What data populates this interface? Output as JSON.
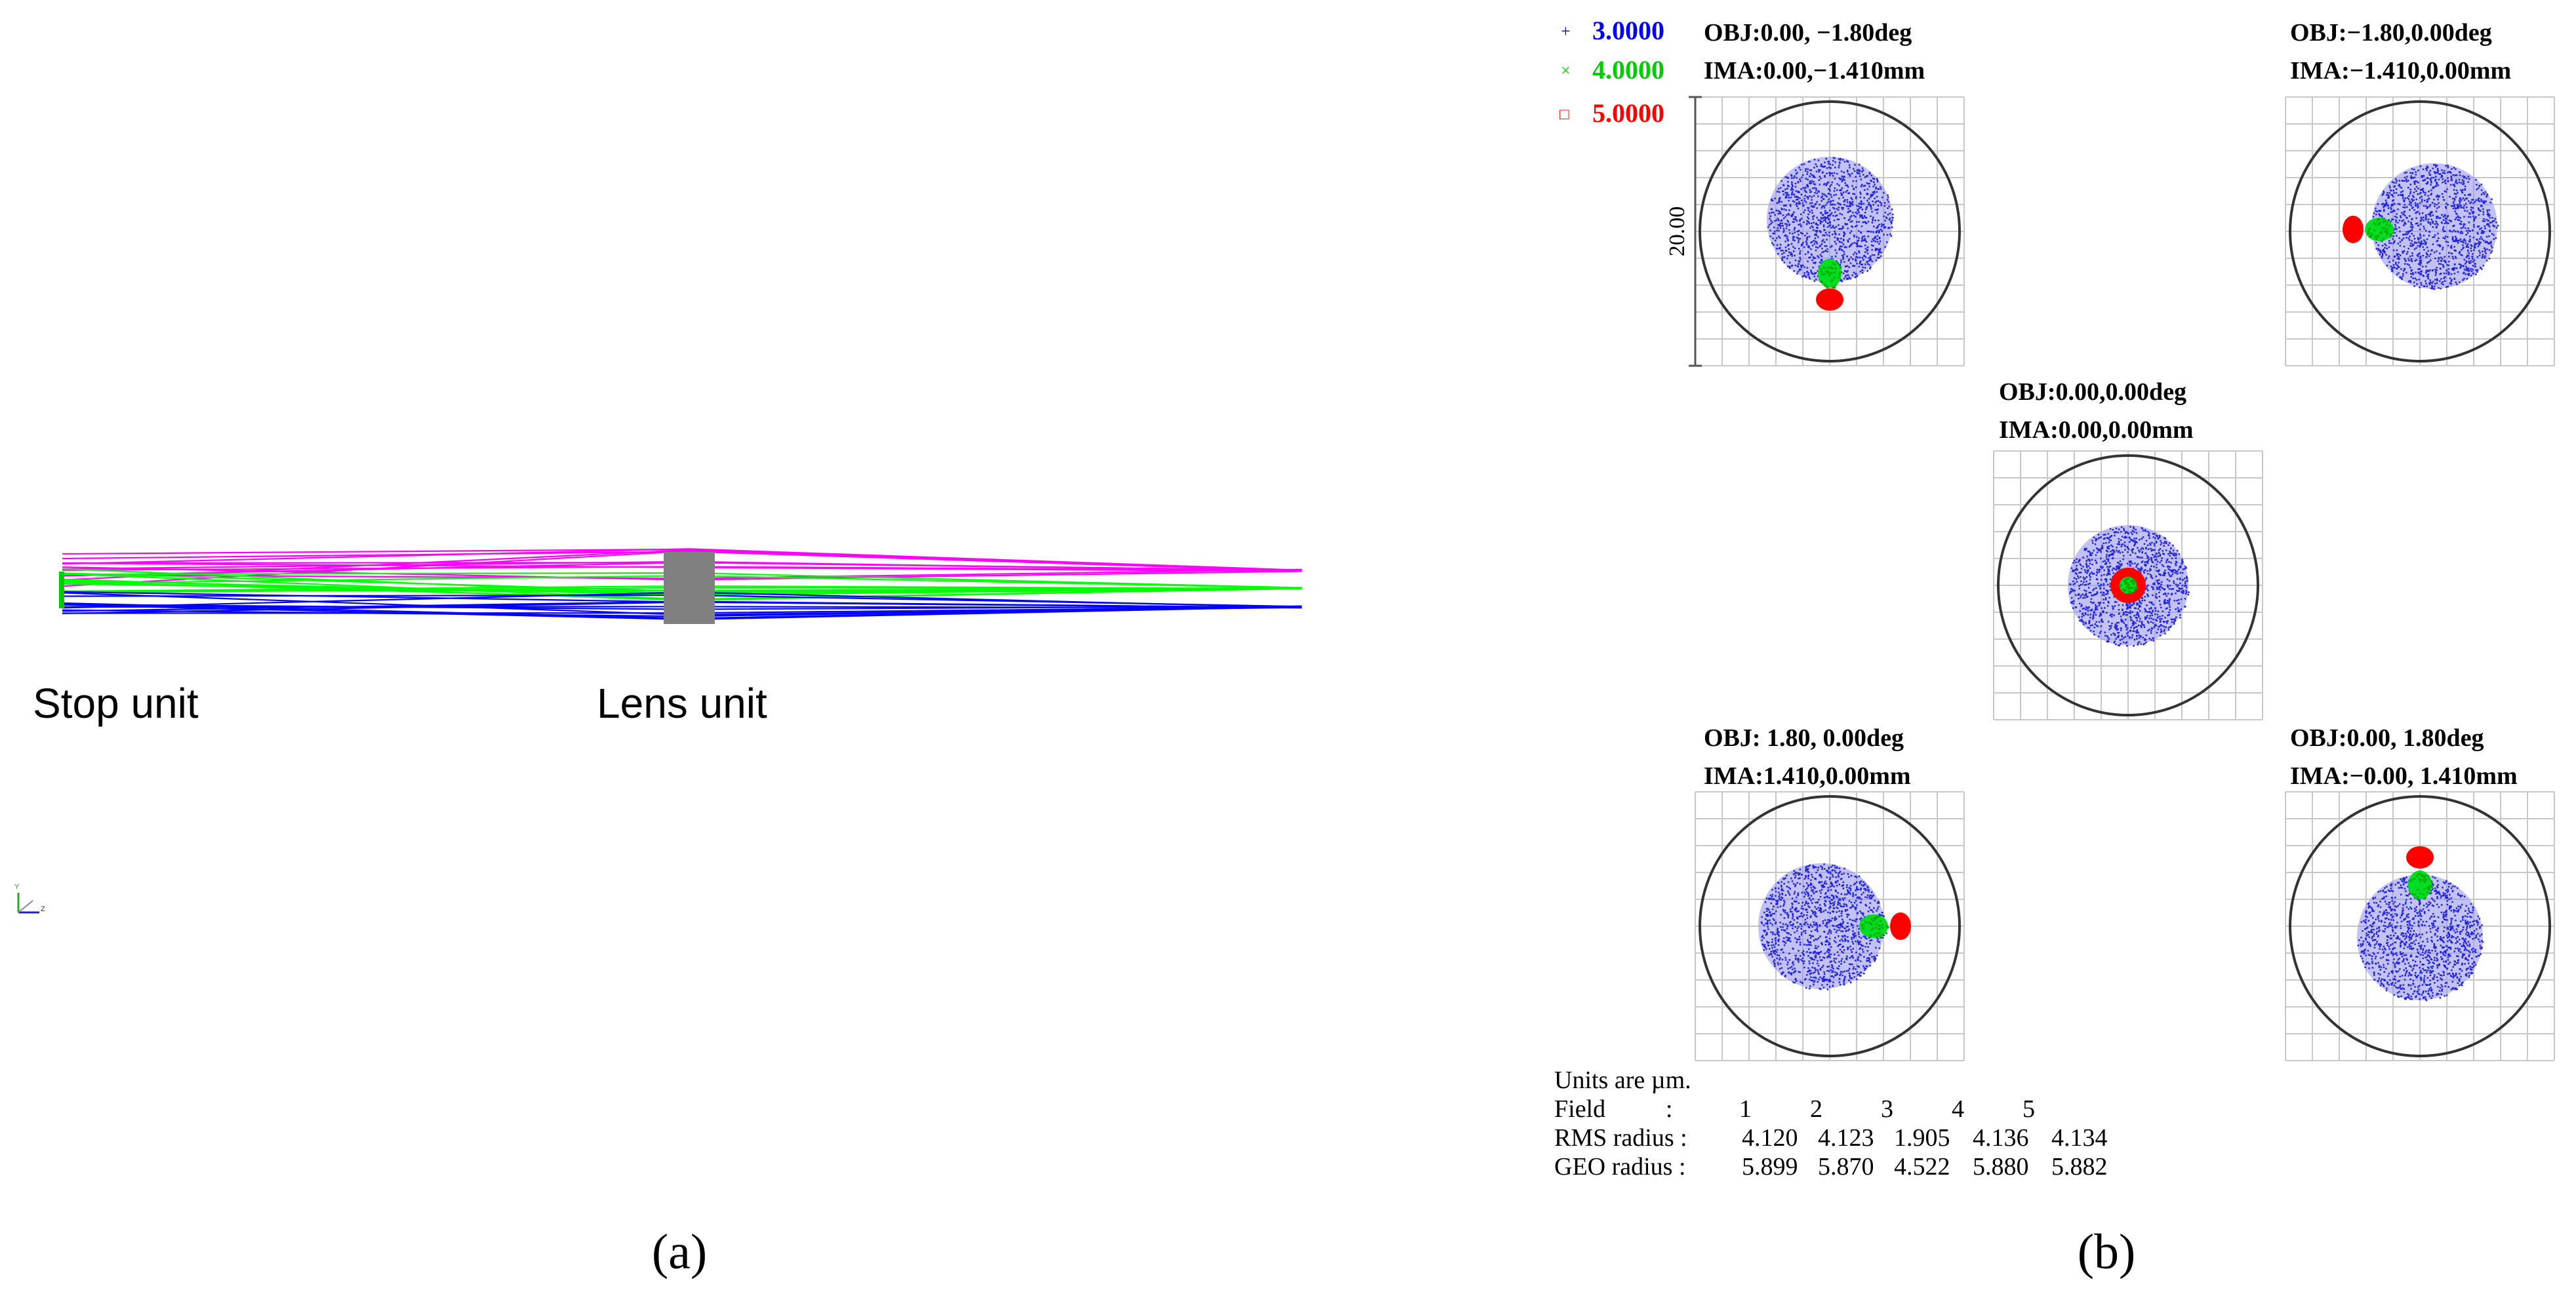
{
  "panel_a": {
    "caption": "(a)",
    "stop_label": "Stop unit",
    "lens_label": "Lens unit",
    "axis_y": "Y",
    "axis_z": "Z",
    "ray_colors": [
      "#ff00ff",
      "#00ff00",
      "#0000ff"
    ],
    "lens_color": "#808080"
  },
  "panel_b": {
    "caption": "(b)",
    "legend": [
      {
        "marker": "+",
        "label": "3.0000",
        "color": "#0000ff"
      },
      {
        "marker": "×",
        "label": "4.0000",
        "color": "#00cc00"
      },
      {
        "marker": "□",
        "label": "5.0000",
        "color": "#ff0000"
      }
    ],
    "scale_label": "20.00",
    "spots": [
      {
        "obj": "OBJ:0.00, −1.80deg",
        "ima": "IMA:0.00,−1.410mm"
      },
      {
        "obj": "OBJ:−1.80,0.00deg",
        "ima": "IMA:−1.410,0.00mm"
      },
      {
        "obj": "OBJ:0.00,0.00deg",
        "ima": "IMA:0.00,0.00mm"
      },
      {
        "obj": "OBJ: 1.80, 0.00deg",
        "ima": "IMA:1.410,0.00mm"
      },
      {
        "obj": "OBJ:0.00, 1.80deg",
        "ima": "IMA:−0.00, 1.410mm"
      }
    ],
    "units_line": "Units are µm.",
    "table": {
      "field_label": "Field",
      "field_colon": ":",
      "fields": [
        "1",
        "2",
        "3",
        "4",
        "5"
      ],
      "rows": [
        {
          "label": "RMS radius :",
          "values": [
            "4.120",
            "4.123",
            "1.905",
            "4.136",
            "4.134"
          ]
        },
        {
          "label": "GEO radius :",
          "values": [
            "5.899",
            "5.870",
            "4.522",
            "5.880",
            "5.882"
          ]
        }
      ]
    },
    "colors": {
      "blue": "#2222dd",
      "green": "#00dd22",
      "red": "#ff0000",
      "grid": "#c8c8c8",
      "circle": "#333333"
    }
  }
}
